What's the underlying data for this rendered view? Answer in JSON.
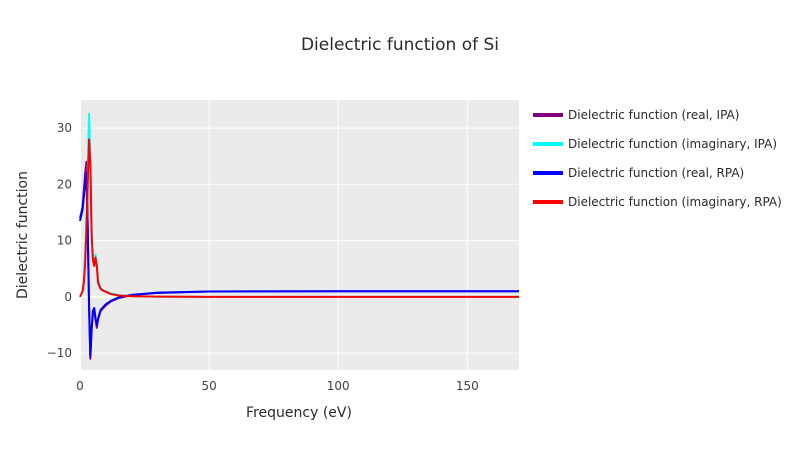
{
  "chart_data": {
    "type": "line",
    "title": "Dielectric function of Si",
    "xlabel": "Frequency (eV)",
    "ylabel": "Dielectric function",
    "xlim": [
      0,
      170
    ],
    "ylim": [
      -13,
      35
    ],
    "xticks": [
      0,
      50,
      100,
      150
    ],
    "xtick_labels": [
      "0",
      "50",
      "100",
      "150"
    ],
    "yticks": [
      -10,
      0,
      10,
      20,
      30
    ],
    "ytick_labels": [
      "−10",
      "0",
      "10",
      "20",
      "30"
    ],
    "grid": true,
    "legend_position": "right",
    "plot_background": "#ebebeb",
    "series": [
      {
        "name": "Dielectric function (real, IPA)",
        "color": "#800080",
        "x": [
          0,
          1,
          2,
          2.5,
          3,
          3.5,
          4,
          4.5,
          5,
          5.5,
          6,
          6.5,
          7,
          8,
          9,
          10,
          12,
          15,
          20,
          30,
          50,
          100,
          170
        ],
        "y": [
          14,
          16,
          22,
          24,
          12,
          -2,
          -11,
          -6,
          -3,
          -2,
          -4,
          -5.5,
          -4,
          -2.5,
          -2,
          -1.5,
          -0.8,
          -0.2,
          0.3,
          0.7,
          0.95,
          1.0,
          1.0
        ]
      },
      {
        "name": "Dielectric function (imaginary, IPA)",
        "color": "#00ffff",
        "x": [
          0,
          1,
          1.5,
          2,
          2.5,
          3,
          3.5,
          4,
          4.5,
          5,
          5.5,
          6,
          6.5,
          7,
          8,
          9,
          10,
          12,
          15,
          20,
          30,
          50,
          100,
          170
        ],
        "y": [
          0,
          1,
          3,
          8,
          15,
          22,
          32.5,
          25,
          12,
          7,
          6,
          7.5,
          6,
          3,
          1.5,
          1.2,
          1,
          0.6,
          0.3,
          0.1,
          0.05,
          0,
          0,
          0
        ]
      },
      {
        "name": "Dielectric function (real, RPA)",
        "color": "#0000ff",
        "x": [
          0,
          1,
          2,
          2.5,
          3,
          3.5,
          4,
          4.5,
          5,
          5.5,
          6,
          6.5,
          7,
          8,
          9,
          10,
          12,
          15,
          20,
          30,
          50,
          100,
          170
        ],
        "y": [
          13.5,
          15.5,
          20,
          22,
          12,
          -1,
          -10.5,
          -5.5,
          -2.5,
          -2,
          -3.8,
          -5,
          -3.8,
          -2.3,
          -1.8,
          -1.3,
          -0.7,
          -0.1,
          0.35,
          0.75,
          0.95,
          1.0,
          1.0
        ]
      },
      {
        "name": "Dielectric function (imaginary, RPA)",
        "color": "#ff0000",
        "x": [
          0,
          1,
          1.5,
          2,
          2.5,
          3,
          3.5,
          4,
          4.5,
          5,
          5.5,
          6,
          6.5,
          7,
          8,
          9,
          10,
          12,
          15,
          20,
          30,
          50,
          100,
          170
        ],
        "y": [
          0,
          1,
          2.5,
          6,
          12,
          20,
          28,
          24,
          11,
          6.5,
          5.5,
          7,
          5.5,
          2.5,
          1.4,
          1.1,
          0.9,
          0.5,
          0.25,
          0.1,
          0.05,
          0,
          0,
          0
        ]
      }
    ]
  }
}
